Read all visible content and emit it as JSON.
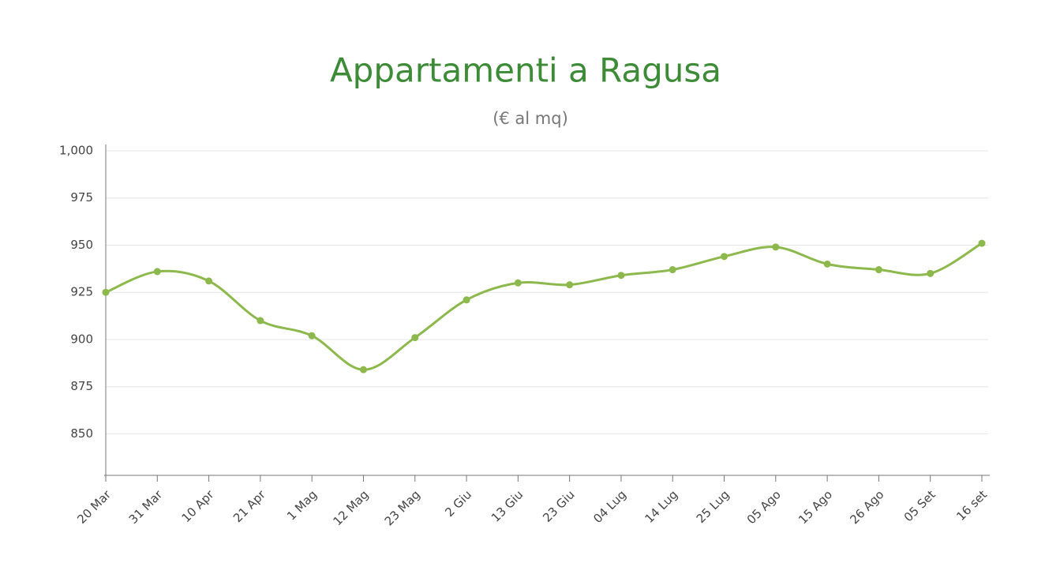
{
  "chart_data": {
    "type": "line",
    "title": "Appartamenti a Ragusa",
    "subtitle": "(€ al mq)",
    "categories": [
      "20 Mar",
      "31 Mar",
      "10 Apr",
      "21 Apr",
      "1 Mag",
      "12 Mag",
      "23 Mag",
      "2 Giu",
      "13 Giu",
      "23 Giu",
      "04 Lug",
      "14 Lug",
      "25 Lug",
      "05 Ago",
      "15 Ago",
      "26 Ago",
      "05 Set",
      "16 set"
    ],
    "values": [
      925,
      936,
      931,
      910,
      902,
      884,
      901,
      921,
      930,
      929,
      934,
      937,
      944,
      949,
      940,
      937,
      935,
      951
    ],
    "color": "#8cb84c",
    "ylim": [
      828,
      1000
    ],
    "yticks": [
      850,
      875,
      900,
      925,
      950,
      975,
      {
        "value": 1000,
        "label": "1,000"
      }
    ],
    "grid": true,
    "smooth": true
  }
}
